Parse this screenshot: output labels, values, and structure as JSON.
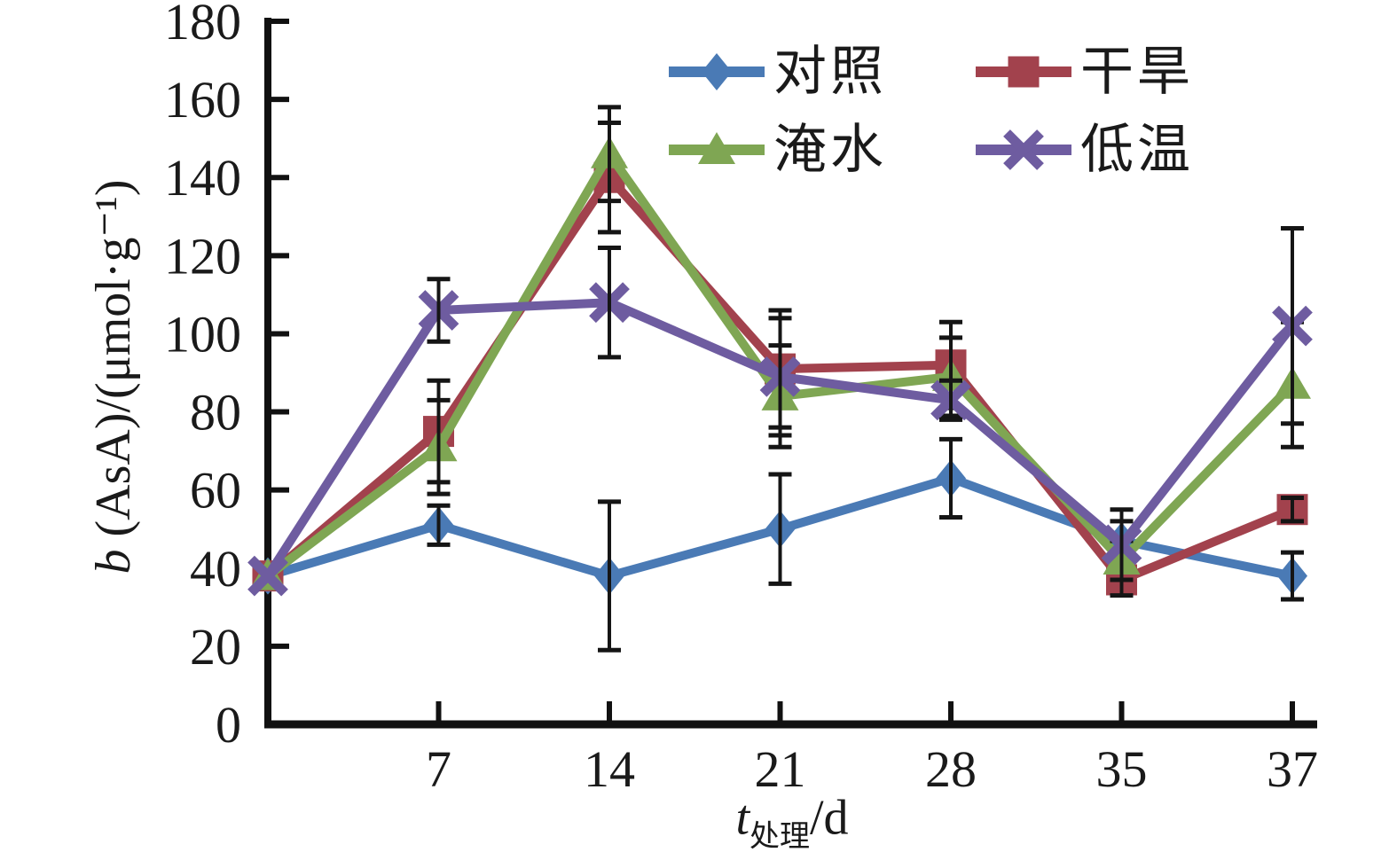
{
  "chart_data": {
    "type": "line",
    "title": "",
    "y_title": {
      "italic_var": "b",
      "rest": " (AsA)/(μmol·g⁻¹)",
      "plain": "b (AsA)/(μmol·g⁻¹)"
    },
    "x_title": {
      "italic_var": "t",
      "subscript": "处理",
      "rest": "/d",
      "plain": "t处理/d"
    },
    "x_categories": [
      "",
      "7",
      "14",
      "21",
      "28",
      "35",
      "37"
    ],
    "ylim": [
      0,
      180
    ],
    "y_ticks": [
      0,
      20,
      40,
      60,
      80,
      100,
      120,
      140,
      160,
      180
    ],
    "grid": false,
    "legend_position": "top-center",
    "has_error_bars": true,
    "error_bar_color": "#151515",
    "axis_color": "#111111",
    "background_color": "#ffffff",
    "series": [
      {
        "key": "control",
        "name": "对照",
        "marker": "diamond",
        "color": "#4A7AB5",
        "values": [
          38,
          51,
          38,
          50,
          63,
          47,
          38
        ],
        "errors": [
          0,
          5,
          19,
          14,
          10,
          5,
          6
        ]
      },
      {
        "key": "drought",
        "name": "干旱",
        "marker": "square",
        "color": "#A2424D",
        "values": [
          38,
          75,
          140,
          91,
          92,
          37,
          55
        ],
        "errors": [
          0,
          13,
          14,
          15,
          11,
          4,
          3
        ]
      },
      {
        "key": "waterlogging",
        "name": "淹水",
        "marker": "triangle",
        "color": "#7FA653",
        "values": [
          38,
          71,
          146,
          84,
          89,
          42,
          87
        ],
        "errors": [
          0,
          12,
          12,
          13,
          10,
          5,
          16
        ]
      },
      {
        "key": "low-temperature",
        "name": "低温",
        "marker": "xmark",
        "color": "#6E5CA0",
        "values": [
          38,
          106,
          108,
          89,
          83,
          46,
          102
        ],
        "errors": [
          0,
          8,
          14,
          15,
          5,
          9,
          25
        ]
      }
    ]
  }
}
